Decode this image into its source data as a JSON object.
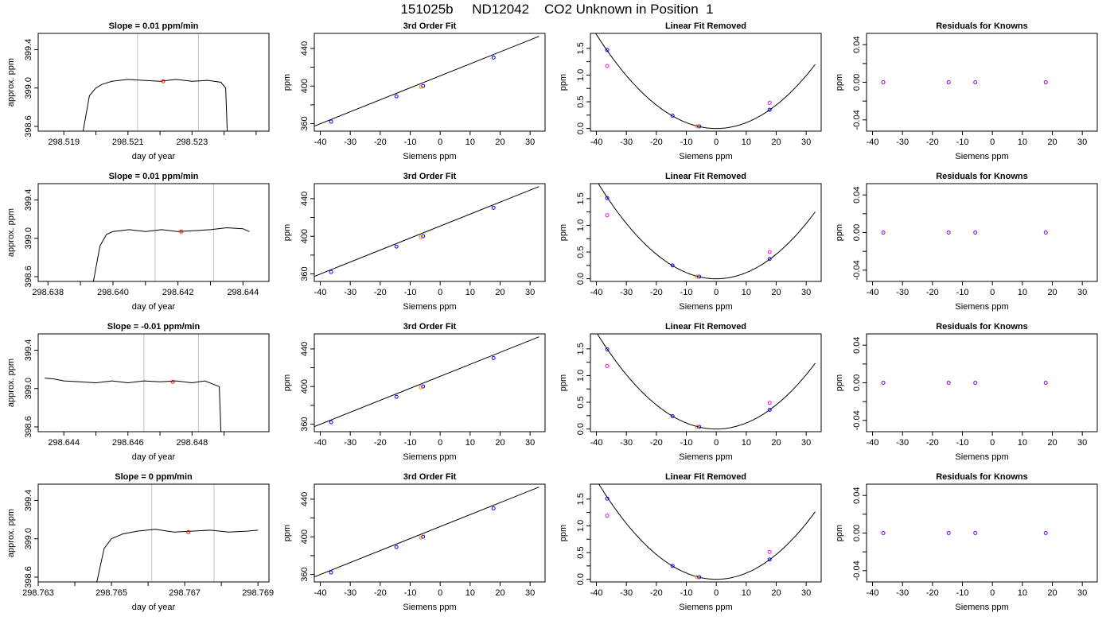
{
  "page": {
    "title": "151025b     ND12042    CO2 Unknown in Position  1"
  },
  "colors": {
    "axis": "#000000",
    "trace": "#000000",
    "window_line": "#bebebe",
    "mean_point": "#ff0000",
    "known_point": "#0000ff",
    "quadratic_point": "#ff00ff",
    "residual_point": "#7b00ff",
    "unknown_point": "#ff7f00"
  },
  "chart_data": [
    {
      "type": "line",
      "row": 1,
      "col": 1,
      "title": "Slope =  0.01  ppm/min",
      "xlabel": "day of year",
      "ylabel": "approx. ppm",
      "xlim": [
        298.5182,
        298.5254
      ],
      "ylim": [
        398.55,
        399.57
      ],
      "xticks": [
        298.519,
        298.521,
        298.523
      ],
      "yticks": [
        398.6,
        399.0,
        399.4
      ],
      "xticks_minor": [
        298.518,
        298.52,
        298.522,
        298.524,
        298.525
      ],
      "vlines": [
        298.5213,
        298.5232
      ],
      "mean_point": [
        298.5221,
        399.07
      ],
      "series": [
        {
          "x": [
            298.5196,
            298.5198,
            298.52,
            298.5202,
            298.5205,
            298.521,
            298.5215,
            298.522,
            298.5225,
            298.523,
            298.5235,
            298.5239,
            298.52405,
            298.5241
          ],
          "y": [
            398.55,
            398.92,
            399.0,
            399.04,
            399.07,
            399.09,
            399.08,
            399.07,
            399.09,
            399.07,
            399.08,
            399.06,
            399.0,
            398.55
          ]
        }
      ]
    },
    {
      "type": "line",
      "row": 2,
      "col": 1,
      "title": "Slope =  0.01  ppm/min",
      "xlabel": "day of year",
      "ylabel": "approx. ppm",
      "xlim": [
        298.6377,
        298.6448
      ],
      "ylim": [
        398.55,
        399.57
      ],
      "xticks": [
        298.638,
        298.64,
        298.642,
        298.644
      ],
      "yticks": [
        398.6,
        399.0,
        399.4
      ],
      "xticks_minor": [
        298.639,
        298.641,
        298.643
      ],
      "vlines": [
        298.6413,
        298.6431
      ],
      "mean_point": [
        298.6421,
        399.07
      ],
      "series": [
        {
          "x": [
            298.6394,
            298.6396,
            298.6398,
            298.64,
            298.6405,
            298.641,
            298.6415,
            298.642,
            298.6425,
            298.643,
            298.6435,
            298.644,
            298.6442
          ],
          "y": [
            398.55,
            398.92,
            399.04,
            399.07,
            399.09,
            399.07,
            399.09,
            399.07,
            399.08,
            399.09,
            399.11,
            399.1,
            399.07
          ]
        }
      ]
    },
    {
      "type": "line",
      "row": 3,
      "col": 1,
      "title": "Slope =  -0.01  ppm/min",
      "xlabel": "day of year",
      "ylabel": "approx. ppm",
      "xlim": [
        298.6432,
        298.6504
      ],
      "ylim": [
        398.55,
        399.57
      ],
      "xticks": [
        298.644,
        298.646,
        298.648
      ],
      "yticks": [
        398.6,
        399.0,
        399.4
      ],
      "xticks_minor": [
        298.645,
        298.647,
        298.649
      ],
      "vlines": [
        298.6465,
        298.6482
      ],
      "mean_point": [
        298.6474,
        399.07
      ],
      "series": [
        {
          "x": [
            298.6434,
            298.6437,
            298.644,
            298.6445,
            298.645,
            298.6455,
            298.646,
            298.6465,
            298.647,
            298.6475,
            298.648,
            298.6484,
            298.64885,
            298.6489
          ],
          "y": [
            399.11,
            399.1,
            399.08,
            399.07,
            399.06,
            399.08,
            399.06,
            399.08,
            399.07,
            399.08,
            399.06,
            399.08,
            399.02,
            398.55
          ]
        }
      ]
    },
    {
      "type": "line",
      "row": 4,
      "col": 1,
      "title": "Slope =  0  ppm/min",
      "xlabel": "day of year",
      "ylabel": "approx. ppm",
      "xlim": [
        298.763,
        298.7693
      ],
      "ylim": [
        398.55,
        399.57
      ],
      "xticks": [
        298.763,
        298.765,
        298.767,
        298.769
      ],
      "yticks": [
        398.6,
        399.0,
        399.4
      ],
      "xticks_minor": [
        298.764,
        298.766,
        298.768
      ],
      "vlines": [
        298.7661,
        298.7678
      ],
      "mean_point": [
        298.7671,
        399.07
      ],
      "series": [
        {
          "x": [
            298.7646,
            298.7648,
            298.765,
            298.7653,
            298.7657,
            298.7662,
            298.7667,
            298.7672,
            298.7677,
            298.7682,
            298.7687,
            298.769
          ],
          "y": [
            398.55,
            398.9,
            399.0,
            399.05,
            399.08,
            399.1,
            399.07,
            399.08,
            399.09,
            399.07,
            399.08,
            399.09
          ]
        }
      ]
    },
    {
      "type": "scatter",
      "row": 1,
      "col": 2,
      "title": "3rd Order Fit",
      "xlabel": "Siemens ppm",
      "ylabel": "ppm",
      "xlim": [
        -42,
        35
      ],
      "ylim": [
        352,
        456
      ],
      "xticks": [
        -40,
        -30,
        -20,
        -10,
        0,
        10,
        20,
        30
      ],
      "yticks": [
        360,
        400,
        440
      ],
      "yticks_minor": [
        380,
        420
      ],
      "fit_line": {
        "x": [
          -42,
          33
        ],
        "y": [
          357.4,
          452.9
        ]
      },
      "knowns": [
        [
          -36.4,
          362.1
        ],
        [
          -14.6,
          389.1
        ],
        [
          -5.7,
          400.1
        ],
        [
          17.8,
          430.3
        ]
      ],
      "unknown": [
        [
          -6.4,
          399.2
        ]
      ]
    },
    {
      "type": "scatter",
      "row": 2,
      "col": 2,
      "title": "3rd Order Fit",
      "xlabel": "Siemens ppm",
      "ylabel": "ppm",
      "xlim": [
        -42,
        35
      ],
      "ylim": [
        352,
        456
      ],
      "xticks": [
        -40,
        -30,
        -20,
        -10,
        0,
        10,
        20,
        30
      ],
      "yticks": [
        360,
        400,
        440
      ],
      "yticks_minor": [
        380,
        420
      ],
      "fit_line": {
        "x": [
          -42,
          33
        ],
        "y": [
          357.4,
          452.9
        ]
      },
      "knowns": [
        [
          -36.4,
          362.1
        ],
        [
          -14.6,
          389.1
        ],
        [
          -5.7,
          400.1
        ],
        [
          17.8,
          430.3
        ]
      ],
      "unknown": [
        [
          -6.4,
          399.2
        ]
      ]
    },
    {
      "type": "scatter",
      "row": 3,
      "col": 2,
      "title": "3rd Order Fit",
      "xlabel": "Siemens ppm",
      "ylabel": "ppm",
      "xlim": [
        -42,
        35
      ],
      "ylim": [
        352,
        456
      ],
      "xticks": [
        -40,
        -30,
        -20,
        -10,
        0,
        10,
        20,
        30
      ],
      "yticks": [
        360,
        400,
        440
      ],
      "yticks_minor": [
        380,
        420
      ],
      "fit_line": {
        "x": [
          -42,
          33
        ],
        "y": [
          357.4,
          452.9
        ]
      },
      "knowns": [
        [
          -36.4,
          362.1
        ],
        [
          -14.6,
          389.1
        ],
        [
          -5.7,
          400.1
        ],
        [
          17.8,
          430.3
        ]
      ],
      "unknown": [
        [
          -6.4,
          399.2
        ]
      ]
    },
    {
      "type": "scatter",
      "row": 4,
      "col": 2,
      "title": "3rd Order Fit",
      "xlabel": "Siemens ppm",
      "ylabel": "ppm",
      "xlim": [
        -42,
        35
      ],
      "ylim": [
        352,
        456
      ],
      "xticks": [
        -40,
        -30,
        -20,
        -10,
        0,
        10,
        20,
        30
      ],
      "yticks": [
        360,
        400,
        440
      ],
      "yticks_minor": [
        380,
        420
      ],
      "fit_line": {
        "x": [
          -42,
          33
        ],
        "y": [
          357.4,
          452.9
        ]
      },
      "knowns": [
        [
          -36.4,
          362.1
        ],
        [
          -14.6,
          389.1
        ],
        [
          -5.7,
          400.1
        ],
        [
          17.8,
          430.3
        ]
      ],
      "unknown": [
        [
          -6.4,
          399.2
        ]
      ]
    },
    {
      "type": "scatter",
      "row": 1,
      "col": 3,
      "title": "Linear Fit Removed",
      "xlabel": "Siemens ppm",
      "ylabel": "ppm",
      "xlim": [
        -42,
        35
      ],
      "ylim": [
        -0.05,
        1.78
      ],
      "xticks": [
        -40,
        -30,
        -20,
        -10,
        0,
        10,
        20,
        30
      ],
      "yticks": [
        0.0,
        0.5,
        1.0,
        1.5
      ],
      "yticks_minor": [
        0.25,
        0.75,
        1.25
      ],
      "curve_coeff": 0.0011,
      "curve_xrange": [
        -40.5,
        33
      ],
      "knowns": [
        [
          -36.4,
          1.47
        ],
        [
          -14.6,
          0.24
        ],
        [
          -5.7,
          0.04
        ],
        [
          17.8,
          0.35
        ]
      ],
      "quadratic": [
        [
          -36.4,
          1.17
        ],
        [
          17.8,
          0.48
        ]
      ],
      "unknown": [
        [
          -6.4,
          0.04
        ]
      ]
    },
    {
      "type": "scatter",
      "row": 2,
      "col": 3,
      "title": "Linear Fit Removed",
      "xlabel": "Siemens ppm",
      "ylabel": "ppm",
      "xlim": [
        -42,
        35
      ],
      "ylim": [
        -0.05,
        1.78
      ],
      "xticks": [
        -40,
        -30,
        -20,
        -10,
        0,
        10,
        20,
        30
      ],
      "yticks": [
        0.0,
        0.5,
        1.0,
        1.5
      ],
      "yticks_minor": [
        0.25,
        0.75,
        1.25
      ],
      "curve_coeff": 0.00115,
      "curve_xrange": [
        -40.5,
        33
      ],
      "knowns": [
        [
          -36.4,
          1.51
        ],
        [
          -14.6,
          0.25
        ],
        [
          -5.7,
          0.04
        ],
        [
          17.8,
          0.37
        ]
      ],
      "quadratic": [
        [
          -36.4,
          1.19
        ],
        [
          17.8,
          0.5
        ]
      ],
      "unknown": [
        [
          -6.4,
          0.04
        ]
      ]
    },
    {
      "type": "scatter",
      "row": 3,
      "col": 3,
      "title": "Linear Fit Removed",
      "xlabel": "Siemens ppm",
      "ylabel": "ppm",
      "xlim": [
        -42,
        35
      ],
      "ylim": [
        -0.05,
        1.78
      ],
      "xticks": [
        -40,
        -30,
        -20,
        -10,
        0,
        10,
        20,
        30
      ],
      "yticks": [
        0.0,
        0.5,
        1.0,
        1.5
      ],
      "yticks_minor": [
        0.25,
        0.75,
        1.25
      ],
      "curve_coeff": 0.00113,
      "curve_xrange": [
        -40.5,
        33
      ],
      "knowns": [
        [
          -36.4,
          1.49
        ],
        [
          -14.6,
          0.24
        ],
        [
          -5.7,
          0.04
        ],
        [
          17.8,
          0.36
        ]
      ],
      "quadratic": [
        [
          -36.4,
          1.18
        ],
        [
          17.8,
          0.49
        ]
      ],
      "unknown": [
        [
          -6.4,
          0.04
        ]
      ]
    },
    {
      "type": "scatter",
      "row": 4,
      "col": 3,
      "title": "Linear Fit Removed",
      "xlabel": "Siemens ppm",
      "ylabel": "ppm",
      "xlim": [
        -42,
        35
      ],
      "ylim": [
        -0.05,
        1.78
      ],
      "xticks": [
        -40,
        -30,
        -20,
        -10,
        0,
        10,
        20,
        30
      ],
      "yticks": [
        0.0,
        0.5,
        1.0,
        1.5
      ],
      "yticks_minor": [
        0.25,
        0.75,
        1.25
      ],
      "curve_coeff": 0.00116,
      "curve_xrange": [
        -40.5,
        33
      ],
      "knowns": [
        [
          -36.4,
          1.51
        ],
        [
          -14.6,
          0.25
        ],
        [
          -5.7,
          0.04
        ],
        [
          17.8,
          0.37
        ]
      ],
      "quadratic": [
        [
          -36.4,
          1.19
        ],
        [
          17.8,
          0.51
        ]
      ],
      "unknown": [
        [
          -6.4,
          0.04
        ]
      ]
    },
    {
      "type": "scatter",
      "row": 1,
      "col": 4,
      "title": "Residuals for Knowns",
      "xlabel": "Siemens ppm",
      "ylabel": "ppm",
      "xlim": [
        -42,
        35
      ],
      "ylim": [
        -0.052,
        0.052
      ],
      "xticks": [
        -40,
        -30,
        -20,
        -10,
        0,
        10,
        20,
        30
      ],
      "yticks": [
        -0.04,
        0.0,
        0.04
      ],
      "yticks_minor": [
        -0.02,
        0.02
      ],
      "residuals": [
        [
          -36.4,
          0.0
        ],
        [
          -14.6,
          0.0
        ],
        [
          -5.7,
          0.0
        ],
        [
          17.8,
          0.0
        ]
      ]
    },
    {
      "type": "scatter",
      "row": 2,
      "col": 4,
      "title": "Residuals for Knowns",
      "xlabel": "Siemens ppm",
      "ylabel": "ppm",
      "xlim": [
        -42,
        35
      ],
      "ylim": [
        -0.052,
        0.052
      ],
      "xticks": [
        -40,
        -30,
        -20,
        -10,
        0,
        10,
        20,
        30
      ],
      "yticks": [
        -0.04,
        0.0,
        0.04
      ],
      "yticks_minor": [
        -0.02,
        0.02
      ],
      "residuals": [
        [
          -36.4,
          0.0
        ],
        [
          -14.6,
          0.0
        ],
        [
          -5.7,
          0.0
        ],
        [
          17.8,
          0.0
        ]
      ]
    },
    {
      "type": "scatter",
      "row": 3,
      "col": 4,
      "title": "Residuals for Knowns",
      "xlabel": "Siemens ppm",
      "ylabel": "ppm",
      "xlim": [
        -42,
        35
      ],
      "ylim": [
        -0.052,
        0.052
      ],
      "xticks": [
        -40,
        -30,
        -20,
        -10,
        0,
        10,
        20,
        30
      ],
      "yticks": [
        -0.04,
        0.0,
        0.04
      ],
      "yticks_minor": [
        -0.02,
        0.02
      ],
      "residuals": [
        [
          -36.4,
          0.0
        ],
        [
          -14.6,
          0.0
        ],
        [
          -5.7,
          0.0
        ],
        [
          17.8,
          0.0
        ]
      ]
    },
    {
      "type": "scatter",
      "row": 4,
      "col": 4,
      "title": "Residuals for Knowns",
      "xlabel": "Siemens ppm",
      "ylabel": "ppm",
      "xlim": [
        -42,
        35
      ],
      "ylim": [
        -0.052,
        0.052
      ],
      "xticks": [
        -40,
        -30,
        -20,
        -10,
        0,
        10,
        20,
        30
      ],
      "yticks": [
        -0.04,
        0.0,
        0.04
      ],
      "yticks_minor": [
        -0.02,
        0.02
      ],
      "residuals": [
        [
          -36.4,
          0.0
        ],
        [
          -14.6,
          0.0
        ],
        [
          -5.7,
          0.0
        ],
        [
          17.8,
          0.0
        ]
      ]
    }
  ]
}
